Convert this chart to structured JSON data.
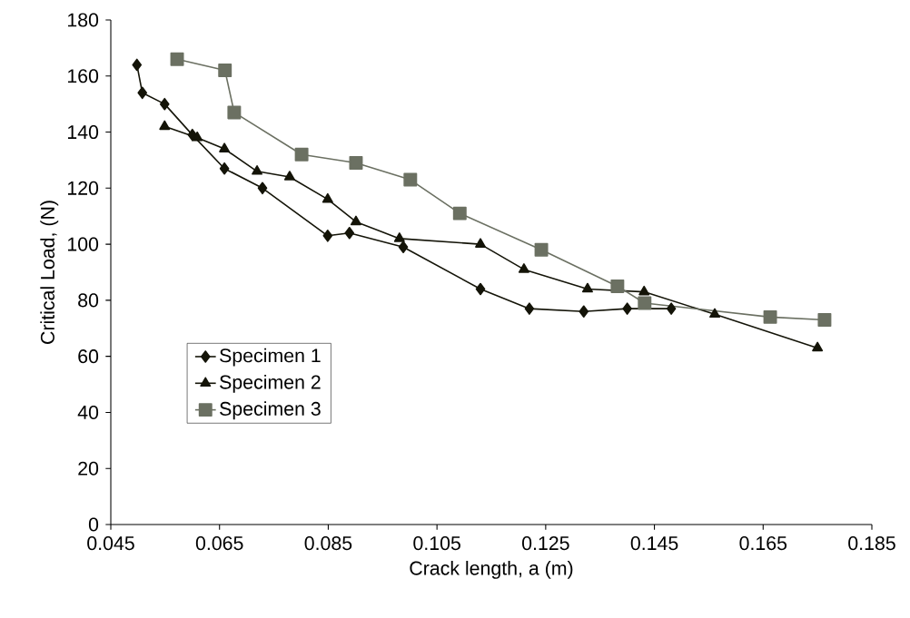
{
  "chart_data": {
    "type": "line",
    "xlabel": "Crack length, a (m)",
    "ylabel": "Critical Load, (N)",
    "xlim": [
      0.045,
      0.185
    ],
    "xticks": [
      0.045,
      0.065,
      0.085,
      0.105,
      0.125,
      0.145,
      0.165,
      0.185
    ],
    "ylim": [
      0,
      180
    ],
    "yticks": [
      0,
      20,
      40,
      60,
      80,
      100,
      120,
      140,
      160,
      180
    ],
    "grid": false,
    "legend": "left",
    "line_style": "solid",
    "series": [
      {
        "name": "Specimen 1",
        "color": "#141408",
        "marker": "diamond",
        "x": [
          0.0498,
          0.0508,
          0.0549,
          0.06,
          0.0659,
          0.0729,
          0.0849,
          0.0889,
          0.0988,
          0.113,
          0.122,
          0.132,
          0.14,
          0.1481
        ],
        "values": [
          164,
          154,
          150,
          139,
          127,
          120,
          103,
          104,
          99,
          84,
          77,
          76,
          77,
          77
        ]
      },
      {
        "name": "Specimen 2",
        "color": "#141408",
        "marker": "triangle",
        "x": [
          0.0549,
          0.0609,
          0.0659,
          0.0719,
          0.0779,
          0.0849,
          0.0901,
          0.0981,
          0.113,
          0.121,
          0.1327,
          0.1431,
          0.1561,
          0.175
        ],
        "values": [
          142,
          138,
          134,
          126,
          124,
          116,
          108,
          102,
          100,
          91,
          84,
          83,
          75,
          63
        ]
      },
      {
        "name": "Specimen 3",
        "color": "#6b7062",
        "marker": "square",
        "x": [
          0.0572,
          0.066,
          0.0677,
          0.0801,
          0.0901,
          0.1001,
          0.1092,
          0.1242,
          0.1382,
          0.1432,
          0.1663,
          0.1763
        ],
        "values": [
          166,
          162,
          147,
          132,
          129,
          123,
          111,
          98,
          85,
          79,
          74,
          73
        ]
      }
    ]
  }
}
